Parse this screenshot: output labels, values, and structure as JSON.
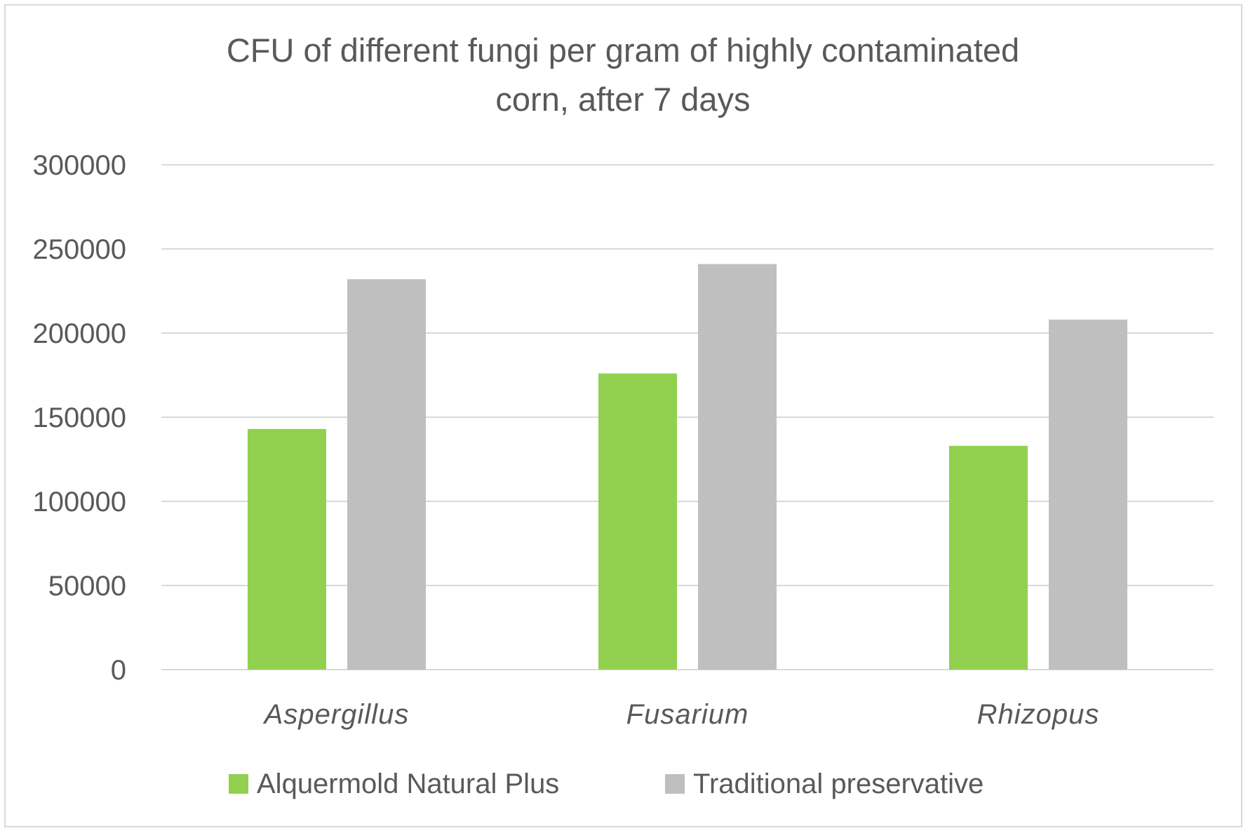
{
  "chart_data": {
    "type": "bar",
    "title_lines": [
      "CFU of different fungi per gram of highly contaminated",
      "corn, after 7 days"
    ],
    "categories": [
      "Aspergillus",
      "Fusarium",
      "Rhizopus"
    ],
    "series": [
      {
        "name": "Alquermold Natural Plus",
        "color": "#92d050",
        "values": [
          143000,
          176000,
          133000
        ]
      },
      {
        "name": "Traditional preservative",
        "color": "#bfbfbf",
        "values": [
          232000,
          241000,
          208000
        ]
      }
    ],
    "yticks": [
      0,
      50000,
      100000,
      150000,
      200000,
      250000,
      300000
    ],
    "ylim": [
      0,
      300000
    ],
    "grid": true,
    "gridline_color": "#d9d9d9",
    "legend_position": "bottom"
  }
}
